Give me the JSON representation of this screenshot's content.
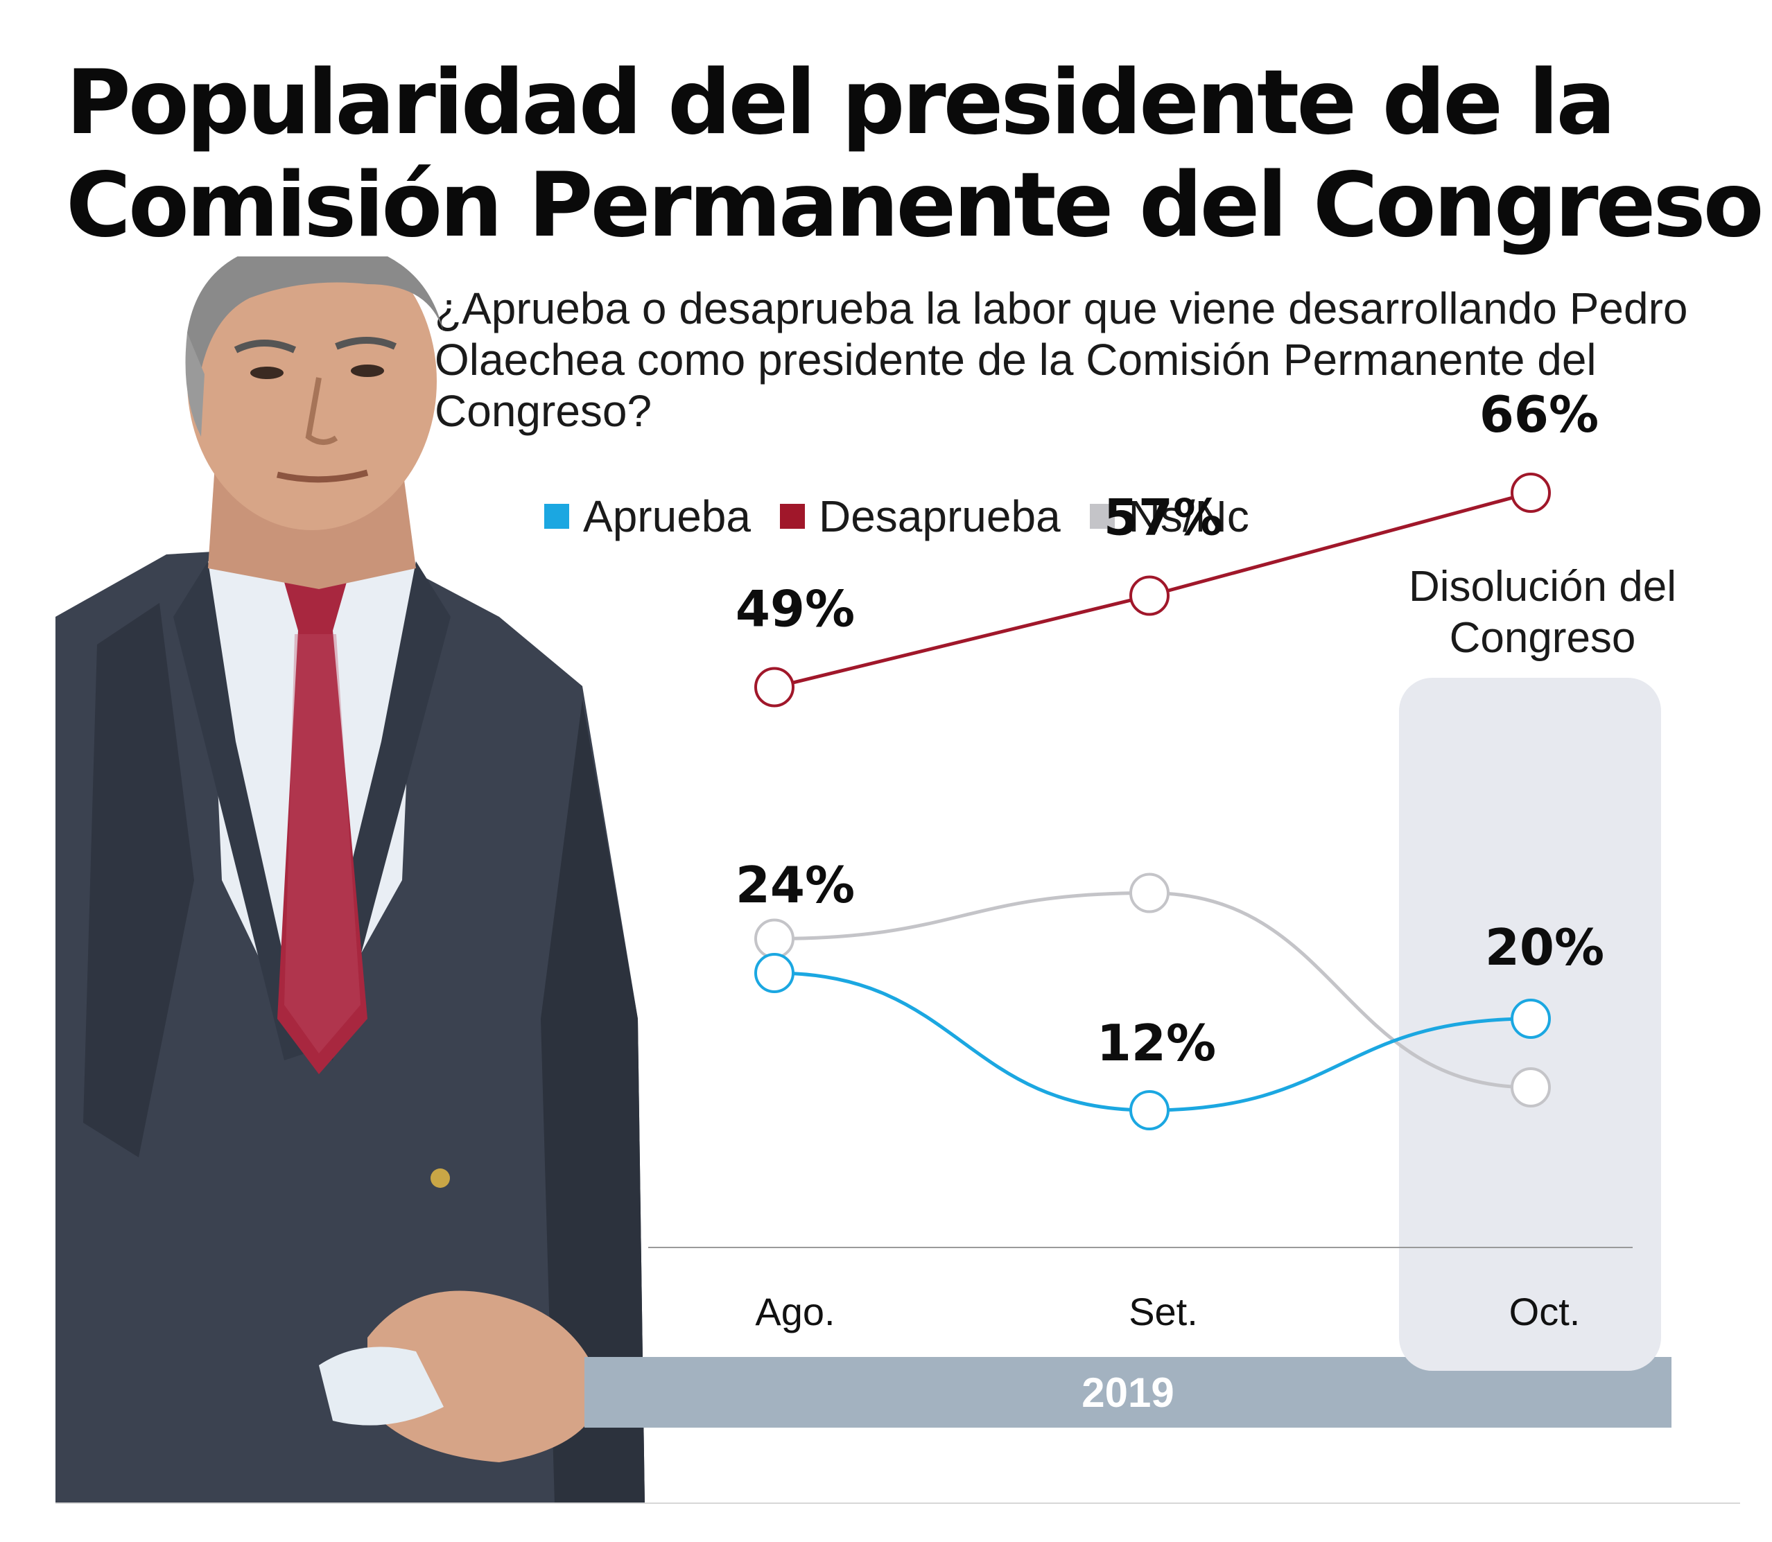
{
  "title": {
    "line1": "Popularidad del presidente de la",
    "line2": "Comisión Permanente del Congreso"
  },
  "question": "¿Aprueba o desaprueba la labor que viene desarrollando Pedro Olaechea como presidente de la Comisión Permanente del Congreso?",
  "legend": [
    {
      "label": "Aprueba",
      "color": "#1ba7e1"
    },
    {
      "label": "Desaprueba",
      "color": "#a0172a"
    },
    {
      "label": "Ns/Nc",
      "color": "#c4c4c8"
    }
  ],
  "annotation": {
    "line1": "Disolución del",
    "line2": "Congreso"
  },
  "year": "2019",
  "chart_data": {
    "type": "line",
    "title": "Popularidad del presidente de la Comisión Permanente del Congreso",
    "categories": [
      "Ago.",
      "Set.",
      "Oct."
    ],
    "series": [
      {
        "name": "Desaprueba",
        "color": "#a0172a",
        "values": [
          49,
          57,
          66
        ],
        "labels": [
          "49%",
          "57%",
          "66%"
        ]
      },
      {
        "name": "Aprueba",
        "color": "#1ba7e1",
        "values": [
          24,
          12,
          20
        ],
        "labels": [
          "24%",
          "12%",
          "20%"
        ]
      },
      {
        "name": "Ns/Nc",
        "color": "#c4c4c8",
        "values": [
          27,
          31,
          14
        ],
        "labels": [
          "",
          "",
          ""
        ]
      }
    ],
    "highlight_category": "Oct.",
    "ylim": [
      0,
      100
    ],
    "xlabel": "2019",
    "ylabel": ""
  }
}
